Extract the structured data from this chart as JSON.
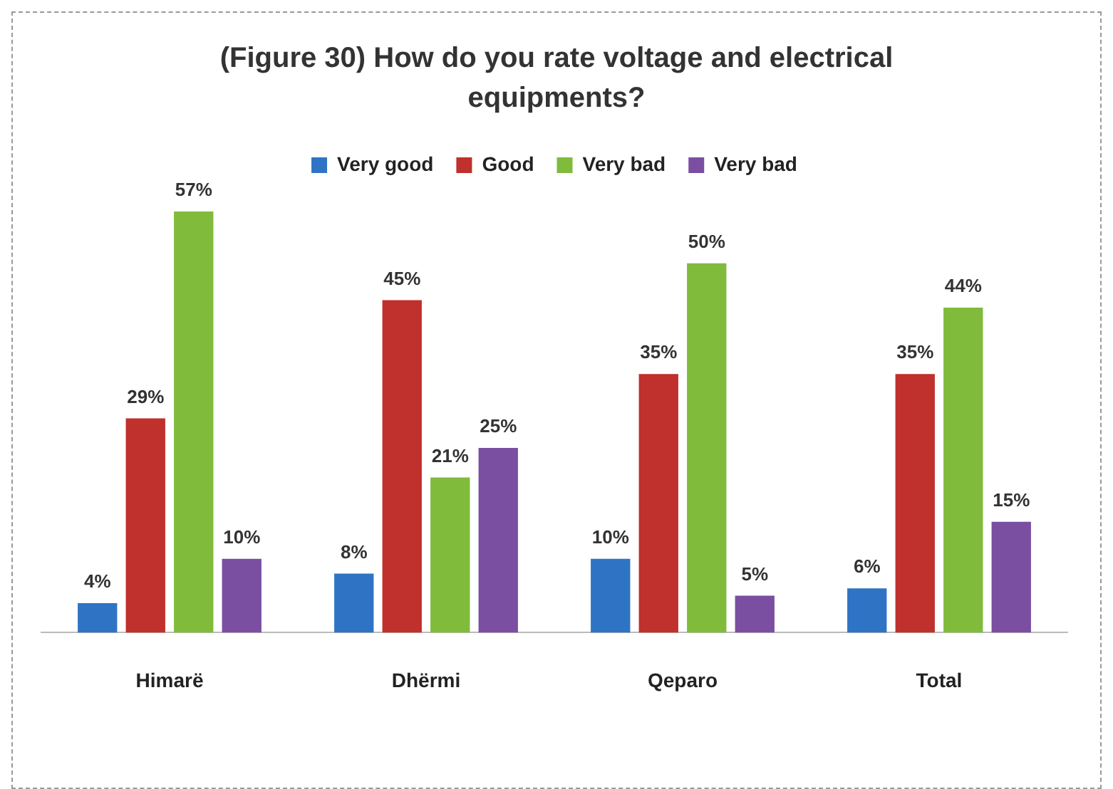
{
  "chart_data": {
    "type": "bar",
    "title": "(Figure 30) How do you rate voltage and electrical equipments?",
    "categories": [
      "Himarë",
      "Dhërmi",
      "Qeparo",
      "Total"
    ],
    "series": [
      {
        "name": "Very good",
        "color": "#2f74c4",
        "values": [
          4,
          8,
          10,
          6
        ],
        "value_labels": [
          "4%",
          "8%",
          "10%",
          "6%"
        ]
      },
      {
        "name": "Good",
        "color": "#c0302c",
        "values": [
          29,
          45,
          35,
          35
        ],
        "value_labels": [
          "29%",
          "45%",
          "35%",
          "35%"
        ]
      },
      {
        "name": "Very bad",
        "color": "#80bb3c",
        "values": [
          57,
          21,
          50,
          44
        ],
        "value_labels": [
          "57%",
          "21%",
          "50%",
          "44%"
        ]
      },
      {
        "name": "Very bad",
        "color": "#7a4fa2",
        "values": [
          10,
          25,
          5,
          15
        ],
        "value_labels": [
          "10%",
          "25%",
          "5%",
          "15%"
        ]
      }
    ],
    "legend": "top",
    "grid": false
  }
}
